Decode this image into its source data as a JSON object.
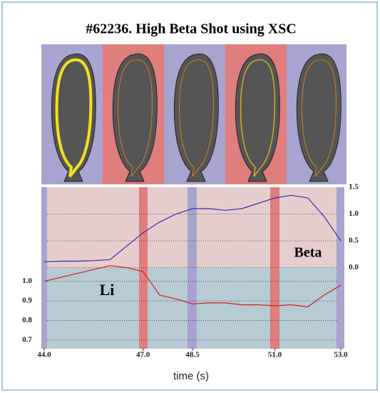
{
  "chart_data": {
    "type": "line",
    "title": "#62236. High Beta Shot using XSC",
    "xlabel": "time (s)",
    "x": [
      44.0,
      44.5,
      45.0,
      45.5,
      46.0,
      46.5,
      47.0,
      47.5,
      48.0,
      48.5,
      49.0,
      49.5,
      50.0,
      50.5,
      51.0,
      51.5,
      52.0,
      52.5,
      53.0
    ],
    "series": [
      {
        "name": "Beta",
        "color": "#3030a8",
        "axis": "y2",
        "values": [
          0.11,
          0.12,
          0.12,
          0.13,
          0.15,
          0.4,
          0.65,
          0.85,
          1.0,
          1.1,
          1.1,
          1.07,
          1.1,
          1.2,
          1.3,
          1.35,
          1.3,
          0.95,
          0.5
        ]
      },
      {
        "name": "Li",
        "color": "#cc2020",
        "values": [
          1.0,
          1.02,
          1.04,
          1.06,
          1.08,
          1.07,
          1.05,
          0.93,
          0.91,
          0.885,
          0.89,
          0.89,
          0.88,
          0.88,
          0.875,
          0.88,
          0.87,
          0.93,
          0.98
        ]
      }
    ],
    "xlim": [
      44.0,
      53.0
    ],
    "xticks": [
      {
        "value": 44,
        "label": "44.0"
      },
      {
        "value": 47,
        "label": "47.0"
      },
      {
        "value": 48.5,
        "label": "48.5"
      },
      {
        "value": 51,
        "label": "51.0"
      },
      {
        "value": 53,
        "label": "53.0"
      }
    ],
    "ylim": [
      0.66,
      1.48
    ],
    "yticks": [
      0.7,
      0.8,
      0.9,
      {
        "value": 1,
        "label": "1.0"
      }
    ],
    "y2lim": [
      -1.5,
      1.5
    ],
    "y2ticks": [
      {
        "value": 0,
        "label": "0.0"
      },
      0.5,
      {
        "value": 1,
        "label": "1.0"
      },
      1.5
    ],
    "grid": true
  }
}
